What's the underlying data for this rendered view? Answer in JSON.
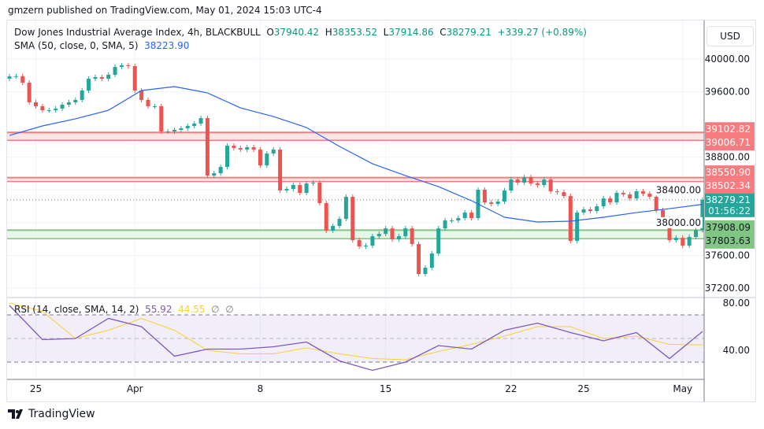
{
  "publisher_line": "gmzern published on TradingView.com, May 01, 2024 15:03 UTC-4",
  "legend": {
    "symbol": "Dow Jones Industrial Average Index, 4h, BLACKBULL",
    "o_label": "O",
    "o": "37940.42",
    "h_label": "H",
    "h": "38353.52",
    "l_label": "L",
    "l": "37914.86",
    "c_label": "C",
    "c": "38279.21",
    "change": "+339.27 (+0.89%)",
    "sma_label": "SMA (50, close, 0, SMA, 5)",
    "sma_value": "38223.90"
  },
  "rsi_legend": {
    "label": "RSI (14, close, SMA, 14, 2)",
    "rsi": "55.92",
    "rsi_ma": "44.55",
    "na1": "∅",
    "na2": "∅"
  },
  "currency": "USD",
  "branding": "TradingView",
  "colors": {
    "up": "#26a69a",
    "down": "#ef5350",
    "sma": "#2962ff",
    "rsi": "#7e57c2",
    "rsi_ma": "#f7d031",
    "resistance": "#f77c80",
    "support": "#81c784",
    "last_price": "#26a69a"
  },
  "chart_data": {
    "type": "candlestick",
    "title": "Dow Jones Industrial Average Index, 4h, BLACKBULL",
    "ylim": [
      37050,
      40150
    ],
    "y_ticks": [
      "40000.00",
      "39600.00",
      "38800.00",
      "38400.00",
      "38000.00",
      "37600.00",
      "37200.00"
    ],
    "x_ticks": [
      {
        "label": "25",
        "index": 4
      },
      {
        "label": "Apr",
        "index": 19
      },
      {
        "label": "8",
        "index": 38
      },
      {
        "label": "15",
        "index": 57
      },
      {
        "label": "22",
        "index": 76
      },
      {
        "label": "25",
        "index": 87
      },
      {
        "label": "May",
        "index": 102
      }
    ],
    "first_open": 39760,
    "closes": [
      39788,
      39790,
      39711,
      39471,
      39423,
      39374,
      39374,
      39394,
      39442,
      39471,
      39500,
      39615,
      39759,
      39779,
      39759,
      39808,
      39904,
      39923,
      39913,
      39615,
      39500,
      39423,
      39423,
      39115,
      39115,
      39134,
      39153,
      39182,
      39211,
      39278,
      38575,
      38604,
      38681,
      38941,
      38912,
      38893,
      38922,
      38893,
      38700,
      38845,
      38893,
      38393,
      38412,
      38460,
      38364,
      38479,
      38489,
      38239,
      37902,
      37960,
      38046,
      38316,
      37786,
      37709,
      37719,
      37834,
      37863,
      37930,
      37796,
      37834,
      37930,
      37738,
      37372,
      37449,
      37623,
      37930,
      38027,
      38027,
      38056,
      38123,
      38056,
      38402,
      38248,
      38229,
      38258,
      38393,
      38527,
      38489,
      38556,
      38479,
      38460,
      38527,
      38383,
      38373,
      38325,
      37777,
      38123,
      38162,
      38142,
      38200,
      38296,
      38248,
      38364,
      38345,
      38296,
      38383,
      38354,
      38316,
      38152,
      38046,
      37786,
      37815,
      37719,
      37825,
      37911,
      38279.21
    ],
    "sma": {
      "name": "SMA (50, close, 0, SMA, 5)",
      "every": 5,
      "values": [
        39066,
        39182,
        39269,
        39374,
        39615,
        39663,
        39586,
        39403,
        39297,
        39163,
        38932,
        38720,
        38575,
        38441,
        38268,
        38066,
        38008,
        38018,
        38066,
        38123,
        38171,
        38223.9
      ]
    },
    "zones": [
      {
        "type": "resistance",
        "low": 39006.71,
        "high": 39102.82,
        "labels": [
          "39102.82",
          "39006.71"
        ]
      },
      {
        "type": "resistance",
        "low": 38502.34,
        "high": 38550.9,
        "labels": [
          "38550.90",
          "38502.34"
        ]
      },
      {
        "type": "support",
        "low": 37803.63,
        "high": 37908.09,
        "labels": [
          "37908.09",
          "37803.63"
        ]
      }
    ],
    "last_price": {
      "value": 38279.21,
      "label": "38279.21",
      "countdown": "01:56:22"
    },
    "rsi": {
      "ylim": [
        15,
        85
      ],
      "y_ticks": [
        "80.00",
        "40.00"
      ],
      "bands": [
        70,
        50,
        30
      ],
      "every": 5,
      "values": [
        78,
        49,
        50,
        67,
        60,
        35,
        41,
        41,
        43,
        47,
        31,
        23,
        30,
        44,
        41,
        57,
        63,
        55,
        48,
        55,
        33,
        55.92
      ],
      "ma_values": [
        80,
        73,
        50,
        57,
        67,
        57,
        40,
        37,
        37,
        42,
        37,
        33,
        32,
        39,
        45,
        52,
        60,
        60,
        50,
        52,
        45,
        44.55
      ]
    }
  }
}
